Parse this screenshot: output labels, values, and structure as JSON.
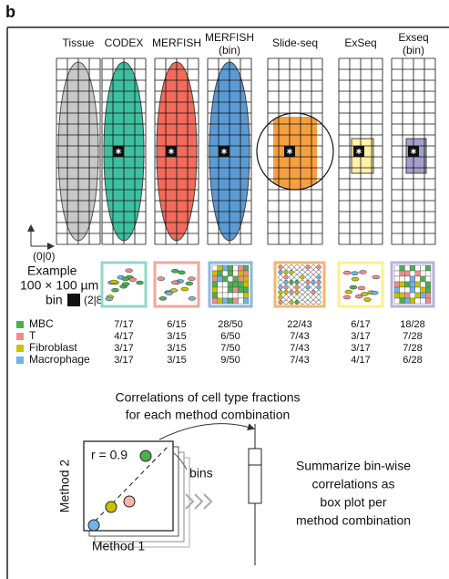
{
  "panel_label": "b",
  "columns": [
    {
      "title": "Tissue"
    },
    {
      "title": "CODEX"
    },
    {
      "title": "MERFISH"
    },
    {
      "title": "MERFISH",
      "subtitle": "(bin)"
    },
    {
      "title": "Slide-seq"
    },
    {
      "title": "ExSeq"
    },
    {
      "title": "Exseq",
      "subtitle": "(bin)"
    }
  ],
  "origin_label": "(0|0)",
  "example": {
    "line1": "Example",
    "line2": "100 × 100 µm",
    "line3": "bin",
    "coords": "(2|8)"
  },
  "cell_types": [
    {
      "name": "MBC",
      "color": "#4caf50"
    },
    {
      "name": "T",
      "color": "#f08c8c"
    },
    {
      "name": "Fibroblast",
      "color": "#c9c200"
    },
    {
      "name": "Macrophage",
      "color": "#6fb3ea"
    }
  ],
  "fractions": [
    [
      "7/17",
      "6/15",
      "28/50",
      "22/43",
      "6/17",
      "18/28"
    ],
    [
      "4/17",
      "3/15",
      "6/50",
      "7/43",
      "3/17",
      "7/28"
    ],
    [
      "3/17",
      "3/15",
      "7/50",
      "7/43",
      "3/17",
      "7/28"
    ],
    [
      "3/17",
      "3/15",
      "9/50",
      "7/43",
      "4/17",
      "6/28"
    ]
  ],
  "correlation": {
    "title_line1": "Correlations of cell type fractions",
    "title_line2": "for each method combination",
    "r_label": "r = 0.9",
    "bins_label": "bins",
    "y_label": "Method 2",
    "x_label": "Method 1"
  },
  "summary": {
    "lines": [
      "Summarize bin-wise",
      "correlations as",
      "box plot per",
      "method combination"
    ]
  }
}
